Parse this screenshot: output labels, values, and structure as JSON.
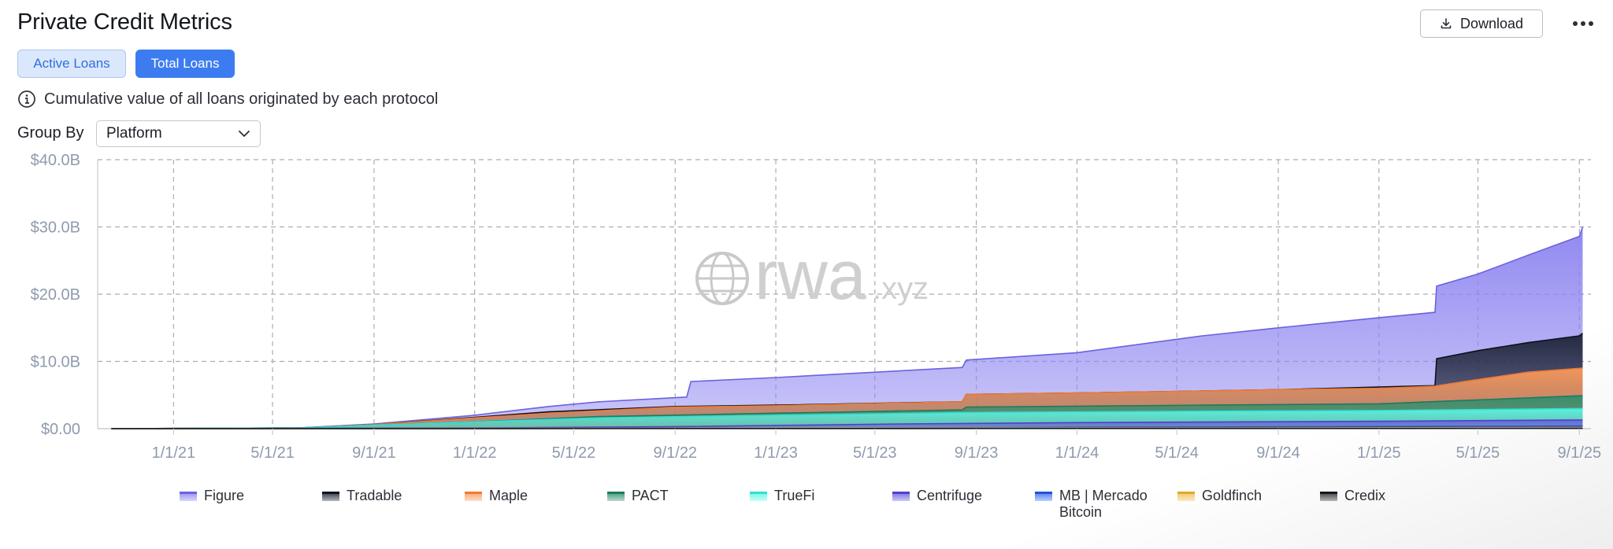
{
  "header": {
    "title": "Private Credit Metrics",
    "download_label": "Download",
    "more_icon": "more-horizontal-icon",
    "download_icon": "download-icon"
  },
  "tabs": [
    {
      "label": "Active Loans",
      "selected": false
    },
    {
      "label": "Total Loans",
      "selected": true
    }
  ],
  "info": {
    "icon": "info-icon",
    "text": "Cumulative value of all loans originated by each protocol"
  },
  "group_by": {
    "label": "Group By",
    "value": "Platform"
  },
  "watermark": {
    "main": "rwa",
    "suffix": ".xyz",
    "icon": "globe-icon"
  },
  "chart_data": {
    "type": "area",
    "stacked": true,
    "grid": true,
    "legend_position": "bottom",
    "x_ticks": [
      "1/1/21",
      "5/1/21",
      "9/1/21",
      "1/1/22",
      "5/1/22",
      "9/1/22",
      "1/1/23",
      "5/1/23",
      "9/1/23",
      "1/1/24",
      "5/1/24",
      "9/1/24",
      "1/1/25",
      "5/1/25",
      "9/1/25"
    ],
    "y_ticks": [
      "$0.00",
      "$10.0B",
      "$20.0B",
      "$30.0B",
      "$40.0B"
    ],
    "ylim": [
      0,
      40
    ],
    "x_start": "2020-10-01",
    "x_end": "2025-09-15",
    "series": [
      {
        "name": "Figure",
        "color": "#8b83f0",
        "line": "#6a62e0",
        "totals": [
          [
            "2020-10-01",
            0
          ],
          [
            "2021-06-01",
            0.1
          ],
          [
            "2021-09-01",
            0.7
          ],
          [
            "2022-01-01",
            2.0
          ],
          [
            "2022-04-01",
            3.3
          ],
          [
            "2022-06-01",
            4.0
          ],
          [
            "2022-09-15",
            4.7
          ],
          [
            "2022-09-20",
            7.0
          ],
          [
            "2023-01-01",
            7.6
          ],
          [
            "2023-08-15",
            9.1
          ],
          [
            "2023-08-20",
            10.2
          ],
          [
            "2024-01-01",
            11.3
          ],
          [
            "2024-06-01",
            13.8
          ],
          [
            "2024-09-01",
            15.0
          ],
          [
            "2025-01-01",
            16.5
          ],
          [
            "2025-03-10",
            17.3
          ],
          [
            "2025-03-12",
            21.2
          ],
          [
            "2025-05-01",
            23.0
          ],
          [
            "2025-07-01",
            25.8
          ],
          [
            "2025-09-01",
            28.6
          ],
          [
            "2025-09-05",
            30.0
          ]
        ]
      },
      {
        "name": "Tradable",
        "color": "#1c2336",
        "line": "#0d1220",
        "totals": [
          [
            "2020-10-01",
            0
          ],
          [
            "2021-06-01",
            0.1
          ],
          [
            "2021-09-01",
            0.6
          ],
          [
            "2022-01-01",
            1.7
          ],
          [
            "2022-04-01",
            2.5
          ],
          [
            "2022-09-01",
            3.3
          ],
          [
            "2023-01-01",
            3.5
          ],
          [
            "2023-08-15",
            4.0
          ],
          [
            "2023-08-20",
            5.1
          ],
          [
            "2024-01-01",
            5.3
          ],
          [
            "2024-06-01",
            5.6
          ],
          [
            "2024-09-01",
            5.8
          ],
          [
            "2025-01-01",
            6.2
          ],
          [
            "2025-03-10",
            6.4
          ],
          [
            "2025-03-12",
            10.4
          ],
          [
            "2025-05-01",
            11.6
          ],
          [
            "2025-07-01",
            12.8
          ],
          [
            "2025-09-01",
            13.8
          ],
          [
            "2025-09-05",
            14.2
          ]
        ]
      },
      {
        "name": "Maple",
        "color": "#fb9a5c",
        "line": "#ee7b36",
        "totals": [
          [
            "2020-10-01",
            0
          ],
          [
            "2021-06-01",
            0.1
          ],
          [
            "2021-09-01",
            0.6
          ],
          [
            "2022-01-01",
            1.6
          ],
          [
            "2022-04-01",
            2.3
          ],
          [
            "2022-09-01",
            3.2
          ],
          [
            "2023-01-01",
            3.4
          ],
          [
            "2023-08-15",
            4.0
          ],
          [
            "2023-08-20",
            5.1
          ],
          [
            "2024-01-01",
            5.3
          ],
          [
            "2024-06-01",
            5.6
          ],
          [
            "2024-09-01",
            5.8
          ],
          [
            "2025-01-01",
            6.0
          ],
          [
            "2025-03-10",
            6.3
          ],
          [
            "2025-04-15",
            7.0
          ],
          [
            "2025-07-01",
            8.4
          ],
          [
            "2025-09-05",
            9.0
          ]
        ]
      },
      {
        "name": "PACT",
        "color": "#2e8f6e",
        "line": "#1f7a5c",
        "totals": [
          [
            "2020-10-01",
            0
          ],
          [
            "2021-06-01",
            0.1
          ],
          [
            "2021-09-01",
            0.5
          ],
          [
            "2022-01-01",
            1.0
          ],
          [
            "2022-06-01",
            1.8
          ],
          [
            "2023-01-01",
            2.3
          ],
          [
            "2023-08-15",
            2.8
          ],
          [
            "2023-08-20",
            3.2
          ],
          [
            "2024-06-01",
            3.5
          ],
          [
            "2025-01-01",
            3.7
          ],
          [
            "2025-04-15",
            4.2
          ],
          [
            "2025-09-05",
            4.9
          ]
        ]
      },
      {
        "name": "TrueFi",
        "color": "#5ff5e6",
        "line": "#2fe0d0",
        "totals": [
          [
            "2020-10-01",
            0
          ],
          [
            "2021-06-01",
            0.1
          ],
          [
            "2021-09-01",
            0.5
          ],
          [
            "2022-01-01",
            1.0
          ],
          [
            "2022-06-01",
            1.6
          ],
          [
            "2023-01-01",
            2.0
          ],
          [
            "2023-08-15",
            2.4
          ],
          [
            "2024-06-01",
            2.6
          ],
          [
            "2025-01-01",
            2.7
          ],
          [
            "2025-09-05",
            3.0
          ]
        ]
      },
      {
        "name": "Centrifuge",
        "color": "#6a5ee0",
        "line": "#4d42c9",
        "totals": [
          [
            "2020-10-01",
            0
          ],
          [
            "2022-01-01",
            0.1
          ],
          [
            "2022-09-01",
            0.3
          ],
          [
            "2023-06-01",
            0.7
          ],
          [
            "2024-01-01",
            0.9
          ],
          [
            "2025-01-01",
            1.1
          ],
          [
            "2025-09-05",
            1.3
          ]
        ]
      },
      {
        "name": "MB | Mercado Bitcoin",
        "color": "#3a6df0",
        "line": "#2452d4",
        "totals": [
          [
            "2020-10-01",
            0
          ],
          [
            "2023-01-01",
            0.05
          ],
          [
            "2024-01-01",
            0.2
          ],
          [
            "2025-09-05",
            0.4
          ]
        ]
      },
      {
        "name": "Goldfinch",
        "color": "#f5c050",
        "line": "#e0a82a",
        "totals": [
          [
            "2020-10-01",
            0
          ],
          [
            "2022-01-01",
            0.05
          ],
          [
            "2025-09-05",
            0.15
          ]
        ]
      },
      {
        "name": "Credix",
        "color": "#2a2e35",
        "line": "#15181d",
        "totals": [
          [
            "2020-10-01",
            0
          ],
          [
            "2025-09-05",
            0.05
          ]
        ]
      }
    ]
  }
}
